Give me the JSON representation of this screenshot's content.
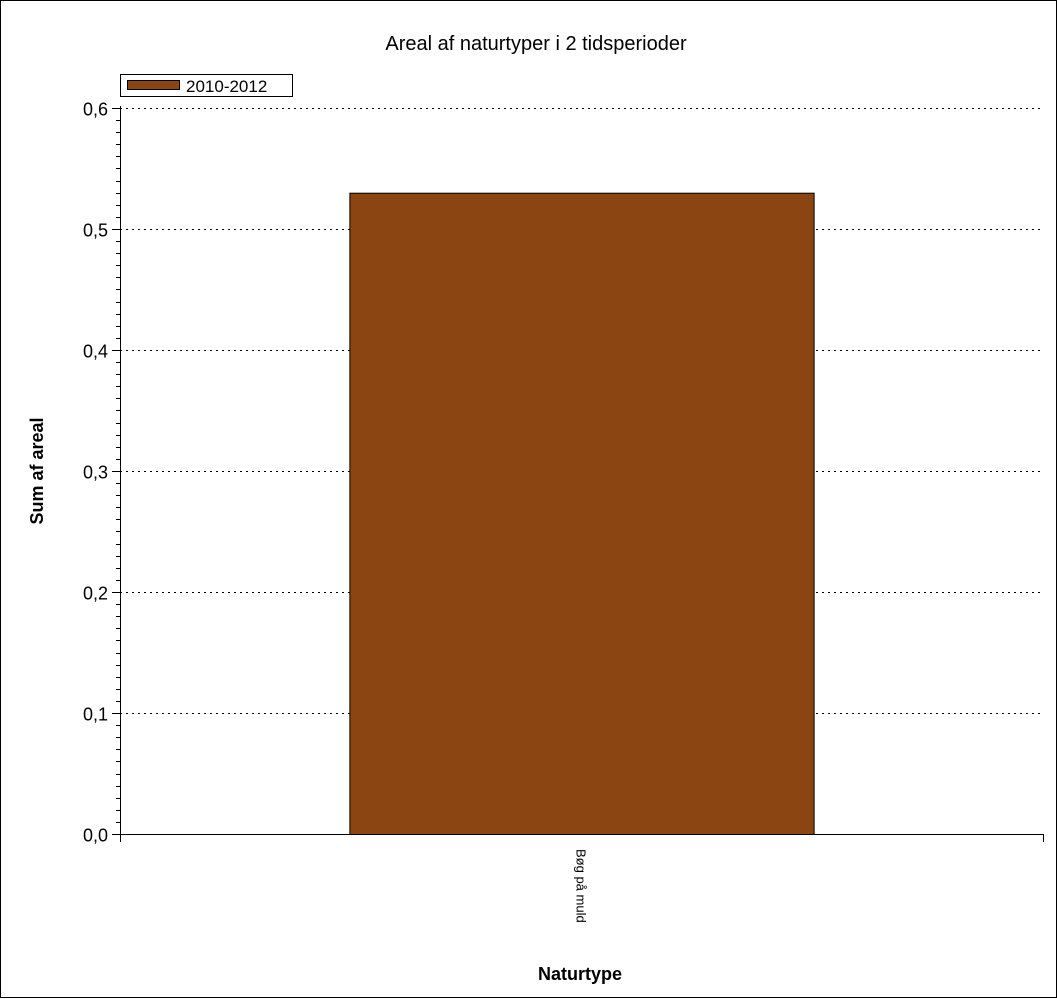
{
  "chart_data": {
    "type": "bar",
    "title": "Areal af naturtyper i 2 tidsperioder",
    "xlabel": "Naturtype",
    "ylabel": "Sum af areal",
    "categories": [
      "Bøg på muld"
    ],
    "series": [
      {
        "name": "2010-2012",
        "values": [
          0.53
        ],
        "color": "#8B4513"
      }
    ],
    "ylim": [
      0,
      0.6
    ],
    "yticks": [
      "0,0",
      "0,1",
      "0,2",
      "0,3",
      "0,4",
      "0,5",
      "0,6"
    ],
    "ytick_values": [
      0,
      0.1,
      0.2,
      0.3,
      0.4,
      0.5,
      0.6
    ],
    "grid": "horizontal-dotted",
    "legend_position": "top-left"
  }
}
